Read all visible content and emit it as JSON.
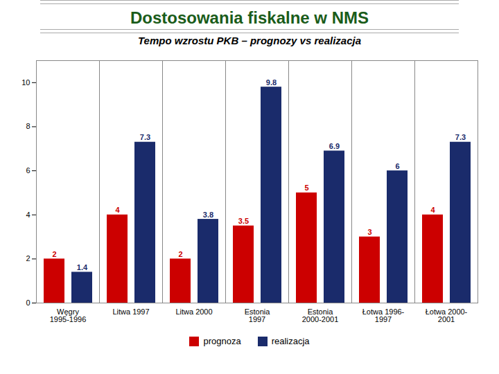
{
  "chart_data": {
    "type": "bar",
    "title": "Dostosowania fiskalne w NMS",
    "subtitle": "Tempo wzrostu PKB – prognozy vs realizacja",
    "categories": [
      "Węgry\n1995-1996",
      "Litwa 1997",
      "Litwa 2000",
      "Estonia\n1997",
      "Estonia\n2000-2001",
      "Łotwa 1996-\n1997",
      "Łotwa 2000-\n2001"
    ],
    "series": [
      {
        "name": "prognoza",
        "color": "#cc0000",
        "values": [
          2,
          4,
          2,
          3.5,
          5,
          3,
          4
        ]
      },
      {
        "name": "realizacja",
        "color": "#1a2b6b",
        "values": [
          1.4,
          7.3,
          3.8,
          9.8,
          6.9,
          6.0,
          7.3
        ]
      }
    ],
    "ylim": [
      0,
      11
    ],
    "yticks": [
      0,
      2,
      4,
      6,
      8,
      10
    ],
    "grid": false,
    "legend": "bottom",
    "data_labels": true
  }
}
